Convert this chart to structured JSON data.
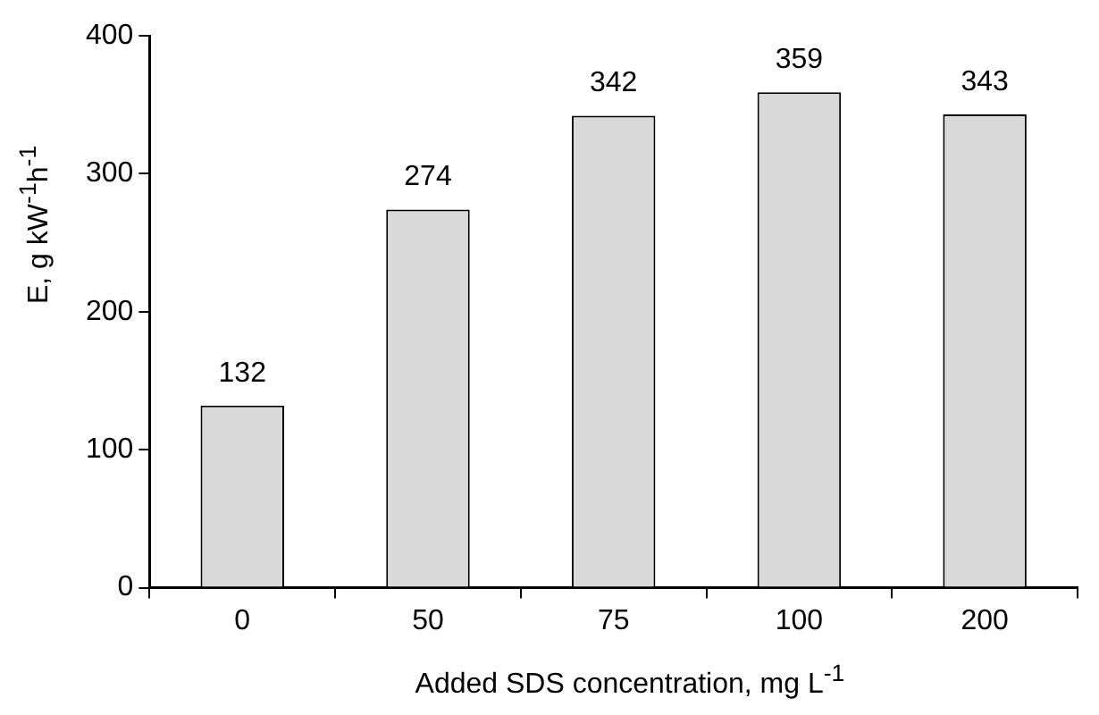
{
  "chart_data": {
    "type": "bar",
    "xlabel": "Added SDS concentration, mg L$^{-1}$",
    "ylabel": "E, g kW$^{-1}$h$^{-1}$",
    "categories": [
      "0",
      "50",
      "75",
      "100",
      "200"
    ],
    "values": [
      132,
      274,
      342,
      359,
      343
    ],
    "color": "#d9d9d9",
    "ylim": [
      0,
      400
    ],
    "yticks": [
      0,
      100,
      200,
      300,
      400
    ],
    "grid": false,
    "legend": false,
    "data_labels": true
  }
}
